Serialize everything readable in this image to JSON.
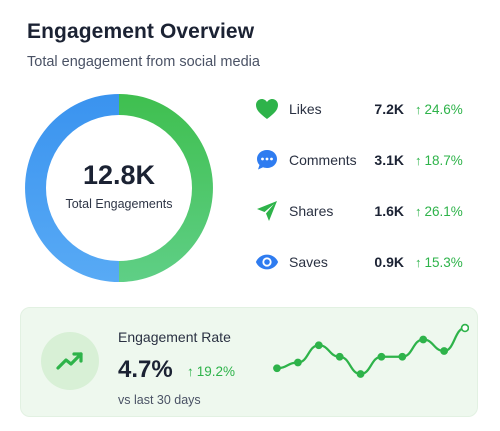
{
  "header": {
    "title": "Engagement Overview",
    "subtitle": "Total engagement from social media"
  },
  "donut": {
    "value": "12.8K",
    "label": "Total Engagements",
    "segments": [
      {
        "name": "green",
        "fraction": 0.5,
        "color": "#3fbf57"
      },
      {
        "name": "blue",
        "fraction": 0.5,
        "color": "#4a9bf0"
      }
    ]
  },
  "metrics": [
    {
      "icon": "heart-icon",
      "name": "Likes",
      "value": "7.2K",
      "change": "24.6%",
      "color": "#2eb34a"
    },
    {
      "icon": "comment-icon",
      "name": "Comments",
      "value": "3.1K",
      "change": "18.7%",
      "color": "#2f7cf0"
    },
    {
      "icon": "send-icon",
      "name": "Shares",
      "value": "1.6K",
      "change": "26.1%",
      "color": "#2eb34a"
    },
    {
      "icon": "eye-icon",
      "name": "Saves",
      "value": "0.9K",
      "change": "15.3%",
      "color": "#2f7cf0"
    }
  ],
  "rate": {
    "title": "Engagement Rate",
    "value": "4.7%",
    "change": "19.2%",
    "caption": "vs last 30 days",
    "icon": "trending-up-icon",
    "trend": [
      2,
      3,
      6,
      4,
      1,
      4,
      4,
      7,
      5,
      9
    ]
  },
  "colors": {
    "accent_green": "#2eb34a",
    "accent_blue": "#2f7cf0",
    "rate_bg": "#eef8ee"
  }
}
